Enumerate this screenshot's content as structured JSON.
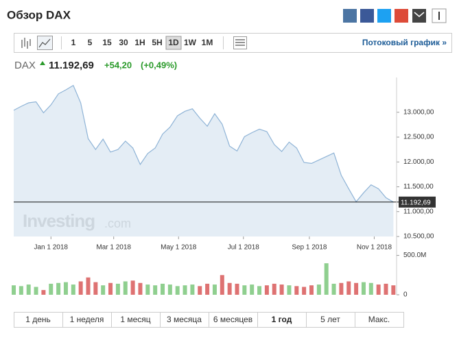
{
  "header": {
    "title": "Обзор DAX"
  },
  "toolbar": {
    "intervals": [
      "1",
      "5",
      "15",
      "30",
      "1H",
      "5H",
      "1D",
      "1W",
      "1M"
    ],
    "active": 6,
    "stream_link": "Потоковый график »"
  },
  "quote": {
    "symbol": "DAX",
    "price": "11.192,69",
    "change": "+54,20",
    "change_pct": "(+0,49%)"
  },
  "chart_data": [
    {
      "type": "area",
      "x": [
        "2017-11-27",
        "2017-12-04",
        "2017-12-11",
        "2017-12-18",
        "2017-12-25",
        "2018-01-01",
        "2018-01-08",
        "2018-01-15",
        "2018-01-22",
        "2018-01-29",
        "2018-02-05",
        "2018-02-12",
        "2018-02-19",
        "2018-02-26",
        "2018-03-05",
        "2018-03-12",
        "2018-03-19",
        "2018-03-26",
        "2018-04-02",
        "2018-04-09",
        "2018-04-16",
        "2018-04-23",
        "2018-04-30",
        "2018-05-07",
        "2018-05-14",
        "2018-05-21",
        "2018-05-28",
        "2018-06-04",
        "2018-06-11",
        "2018-06-18",
        "2018-06-25",
        "2018-07-02",
        "2018-07-09",
        "2018-07-16",
        "2018-07-23",
        "2018-07-30",
        "2018-08-06",
        "2018-08-13",
        "2018-08-20",
        "2018-08-27",
        "2018-09-03",
        "2018-09-10",
        "2018-09-17",
        "2018-09-24",
        "2018-10-01",
        "2018-10-08",
        "2018-10-15",
        "2018-10-22",
        "2018-10-29",
        "2018-11-05",
        "2018-11-12",
        "2018-11-19"
      ],
      "values": [
        13040,
        13120,
        13190,
        13210,
        12990,
        13150,
        13370,
        13450,
        13540,
        13190,
        12470,
        12250,
        12460,
        12200,
        12250,
        12420,
        12280,
        11950,
        12170,
        12280,
        12560,
        12700,
        12930,
        13020,
        13070,
        12880,
        12720,
        12970,
        12760,
        12320,
        12220,
        12510,
        12590,
        12660,
        12610,
        12350,
        12210,
        12400,
        12280,
        11990,
        11970,
        12040,
        12110,
        12180,
        11730,
        11460,
        11200,
        11380,
        11540,
        11460,
        11280,
        11192.69
      ],
      "color": "#8eb3d6",
      "xlim": [
        "2017-11-27",
        "2018-11-22"
      ],
      "xticks": [
        {
          "value": "2018-01-01",
          "label": "Jan 1 2018"
        },
        {
          "value": "2018-03-01",
          "label": "Mar 1 2018"
        },
        {
          "value": "2018-05-01",
          "label": "May 1 2018"
        },
        {
          "value": "2018-07-01",
          "label": "Jul 1 2018"
        },
        {
          "value": "2018-09-01",
          "label": "Sep 1 2018"
        },
        {
          "value": "2018-11-01",
          "label": "Nov 1 2018"
        }
      ],
      "ylim": [
        10500,
        13700
      ],
      "yticks": [
        {
          "value": 10500,
          "label": "10.500,00"
        },
        {
          "value": 11000,
          "label": "11.000,00"
        },
        {
          "value": 11500,
          "label": "11.500,00"
        },
        {
          "value": 12000,
          "label": "12.000,00"
        },
        {
          "value": 12500,
          "label": "12.500,00"
        },
        {
          "value": 13000,
          "label": "13.000,00"
        }
      ],
      "last_price": {
        "value": 11192.69,
        "label": "11.192,69"
      },
      "watermark": [
        "Investing",
        ".com"
      ]
    },
    {
      "type": "bar",
      "values": [
        120000000,
        110000000,
        130000000,
        100000000,
        60000000,
        140000000,
        150000000,
        160000000,
        130000000,
        170000000,
        220000000,
        160000000,
        120000000,
        150000000,
        140000000,
        170000000,
        180000000,
        150000000,
        130000000,
        120000000,
        140000000,
        130000000,
        110000000,
        120000000,
        130000000,
        110000000,
        140000000,
        130000000,
        250000000,
        150000000,
        140000000,
        120000000,
        130000000,
        110000000,
        120000000,
        140000000,
        130000000,
        120000000,
        110000000,
        100000000,
        120000000,
        130000000,
        400000000,
        140000000,
        150000000,
        170000000,
        150000000,
        160000000,
        150000000,
        130000000,
        140000000,
        120000000
      ],
      "up_color": "#8fcf8f",
      "down_color": "#de7272",
      "ylim": [
        0,
        540000000
      ],
      "yticks": [
        0,
        {
          "value": 500000000,
          "label": "500.0M"
        }
      ]
    }
  ],
  "ranges": {
    "buttons": [
      "1 день",
      "1 неделя",
      "1 месяц",
      "3 месяца",
      "6 месяцев",
      "1 год",
      "5 лет",
      "Макс."
    ],
    "active": 5
  }
}
